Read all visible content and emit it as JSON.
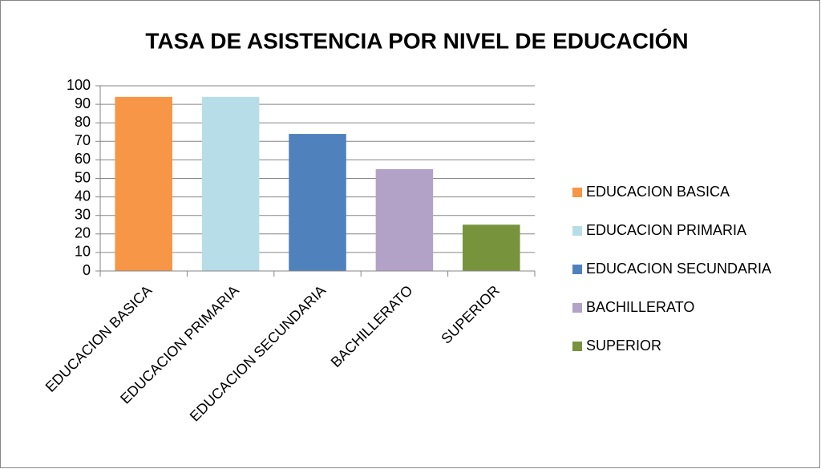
{
  "chart_data": {
    "type": "bar",
    "title": "TASA DE ASISTENCIA POR NIVEL DE EDUCACIÓN",
    "categories": [
      "EDUCACION BASICA",
      "EDUCACION PRIMARIA",
      "EDUCACION SECUNDARIA",
      "BACHILLERATO",
      "SUPERIOR"
    ],
    "values": [
      94,
      94,
      74,
      55,
      25
    ],
    "colors": [
      "#f79646",
      "#b7dee8",
      "#4f81bd",
      "#b3a2c7",
      "#77933c"
    ],
    "ylim": [
      0,
      100
    ],
    "yticks": [
      0,
      10,
      20,
      30,
      40,
      50,
      60,
      70,
      80,
      90,
      100
    ],
    "grid": true,
    "legend": "right"
  }
}
